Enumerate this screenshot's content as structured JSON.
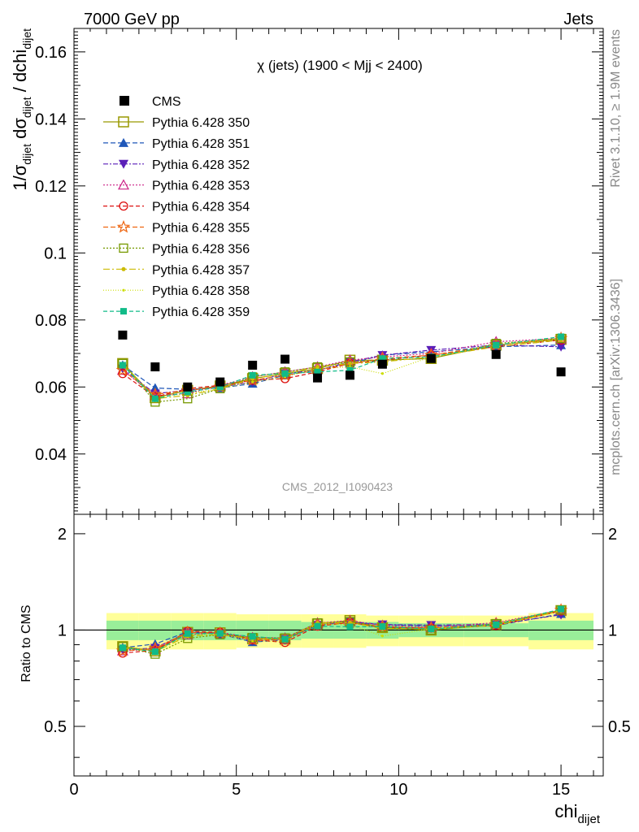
{
  "header": {
    "left": "7000 GeV pp",
    "right": "Jets",
    "plot_title": "χ (jets) (1900 < Mjj < 2400)",
    "watermark": "CMS_2012_I1090423",
    "side_label_1": "Rivet 3.1.10, ≥ 1.9M events",
    "side_label_2": "mcplots.cern.ch [arXiv:1306.3436]"
  },
  "axes": {
    "ylabel_main": {
      "prefix": "1/σ",
      "sub1": "dijet",
      "mid": " dσ",
      "sub2": "dijet",
      "tail": " / dchi",
      "sub3": "dijet"
    },
    "ylabel_ratio": "Ratio to CMS",
    "xlabel": {
      "main": "chi",
      "sub": "dijet"
    }
  },
  "chart_data": {
    "type": "scatter",
    "xlim": [
      0,
      16.3
    ],
    "ylim_main": [
      0.022,
      0.167
    ],
    "ylim_ratio": [
      0.35,
      2.3
    ],
    "yticks_main": [
      "0.04",
      "0.06",
      "0.08",
      "0.1",
      "0.12",
      "0.14",
      "0.16"
    ],
    "yticks_ratio": [
      "0.5",
      "1",
      "2"
    ],
    "xticks": [
      "0",
      "5",
      "10",
      "15"
    ],
    "x": [
      1.5,
      2.5,
      3.5,
      4.5,
      5.5,
      6.5,
      7.5,
      8.5,
      9.5,
      11.0,
      13.0,
      15.0
    ],
    "x_edges": [
      1,
      2,
      3,
      4,
      5,
      6,
      7,
      8,
      9,
      10,
      12,
      14,
      16
    ],
    "data": {
      "name": "CMS",
      "values": [
        0.0755,
        0.066,
        0.06,
        0.0615,
        0.0665,
        0.0683,
        0.0627,
        0.0635,
        0.0668,
        0.0685,
        0.0697,
        0.0645
      ]
    },
    "ratio_bands": {
      "inner": [
        0.07,
        0.07,
        0.07,
        0.07,
        0.07,
        0.07,
        0.06,
        0.06,
        0.06,
        0.05,
        0.05,
        0.07
      ],
      "outer": [
        0.13,
        0.13,
        0.13,
        0.13,
        0.12,
        0.12,
        0.12,
        0.12,
        0.11,
        0.11,
        0.11,
        0.13
      ]
    },
    "series": [
      {
        "name": "Pythia 6.428 350",
        "color": "#999900",
        "dash": "",
        "marker": "square-open",
        "values": [
          0.067,
          0.0568,
          0.059,
          0.0603,
          0.0625,
          0.064,
          0.0655,
          0.068,
          0.068,
          0.0685,
          0.0725,
          0.0742
        ]
      },
      {
        "name": "Pythia 6.428 351",
        "color": "#1f57b8",
        "dash": "6,3",
        "marker": "triangle-up",
        "values": [
          0.0665,
          0.0597,
          0.0593,
          0.0597,
          0.061,
          0.0635,
          0.065,
          0.067,
          0.0695,
          0.0705,
          0.072,
          0.0725
        ]
      },
      {
        "name": "Pythia 6.428 352",
        "color": "#5a1fb8",
        "dash": "6,2,2,2",
        "marker": "triangle-down",
        "values": [
          0.0655,
          0.058,
          0.059,
          0.06,
          0.0615,
          0.064,
          0.065,
          0.0675,
          0.0695,
          0.071,
          0.0725,
          0.072
        ]
      },
      {
        "name": "Pythia 6.428 353",
        "color": "#cc2288",
        "dash": "2,2",
        "marker": "triangle-up-open",
        "values": [
          0.065,
          0.0575,
          0.058,
          0.0605,
          0.063,
          0.0645,
          0.066,
          0.068,
          0.069,
          0.07,
          0.0735,
          0.0745
        ]
      },
      {
        "name": "Pythia 6.428 354",
        "color": "#dd1111",
        "dash": "5,3",
        "marker": "circle-open",
        "values": [
          0.064,
          0.057,
          0.0595,
          0.0605,
          0.062,
          0.0625,
          0.0645,
          0.067,
          0.068,
          0.0695,
          0.072,
          0.074
        ]
      },
      {
        "name": "Pythia 6.428 355",
        "color": "#ee6611",
        "dash": "6,3",
        "marker": "star-open",
        "values": [
          0.065,
          0.0578,
          0.059,
          0.06,
          0.062,
          0.0635,
          0.065,
          0.067,
          0.0685,
          0.0695,
          0.0725,
          0.0745
        ]
      },
      {
        "name": "Pythia 6.428 356",
        "color": "#779900",
        "dash": "2,2",
        "marker": "square-open-small",
        "values": [
          0.067,
          0.0555,
          0.0565,
          0.0595,
          0.063,
          0.0645,
          0.066,
          0.0675,
          0.068,
          0.0685,
          0.073,
          0.0745
        ]
      },
      {
        "name": "Pythia 6.428 357",
        "color": "#ccbb00",
        "dash": "8,3,2,3",
        "marker": "dot",
        "values": [
          0.0665,
          0.0565,
          0.0575,
          0.0595,
          0.0625,
          0.064,
          0.066,
          0.067,
          0.0675,
          0.069,
          0.072,
          0.074
        ]
      },
      {
        "name": "Pythia 6.428 358",
        "color": "#ccdd00",
        "dash": "1,2",
        "marker": "dot-small",
        "values": [
          0.067,
          0.057,
          0.058,
          0.0595,
          0.0615,
          0.063,
          0.0655,
          0.066,
          0.064,
          0.069,
          0.0725,
          0.0745
        ]
      },
      {
        "name": "Pythia 6.428 359",
        "color": "#11bb88",
        "dash": "5,3",
        "marker": "square-filled-small",
        "values": [
          0.0665,
          0.0565,
          0.0585,
          0.06,
          0.0635,
          0.064,
          0.0645,
          0.065,
          0.0685,
          0.069,
          0.0725,
          0.075
        ]
      }
    ]
  }
}
